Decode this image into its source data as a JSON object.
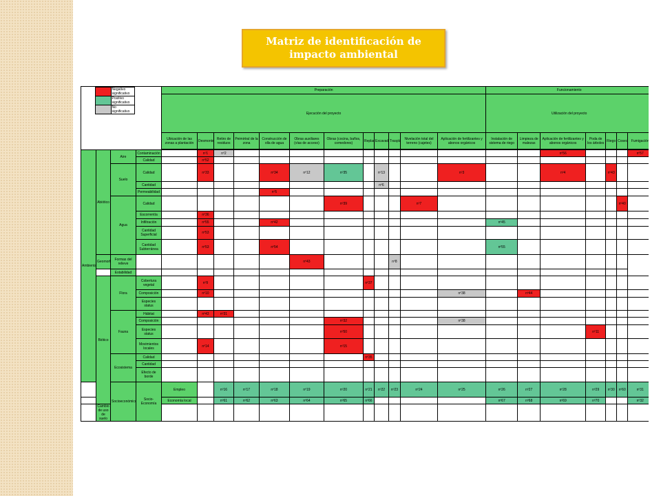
{
  "title": "Matriz de identificación de impacto ambiental",
  "colors": {
    "negative": "#ef2020",
    "positive": "#63c696",
    "header": "#5cd26a",
    "not_significant": "#c8c8c8",
    "title_bg": "#f4c400"
  },
  "legend": [
    "Negativo significativo",
    "Positivo significativo",
    "No significativo"
  ],
  "phases": {
    "preparacion": "Preparación",
    "funcionamiento": "Funcionamiento"
  },
  "subphases": {
    "ejecucion": "Ejecución del proyecto",
    "utilizacion": "Utilización del proyecto"
  },
  "actions": [
    "Ubicación de las zonas a plantación",
    "Desmonte",
    "Retiro de residuos",
    "Peimirtral de la zona",
    "Construcción de olla de agua",
    "Obras auxiliares (vías de acceso)",
    "Obras (cocina, baños, comedores)",
    "Replanteo",
    "Excavadores",
    "Trasplante",
    "Nivelación total del terreno (cajetes)",
    "Aplicación de fertilizantes y abonos orgánicos",
    "Instalación de sistema de riego",
    "Limpieza de malezas",
    "Aplicación de fertilizantes y abonos orgánicos",
    "Poda de los árboles",
    "Riego",
    "Cosecha",
    "Fumigación"
  ],
  "environment": "Ambiental",
  "systems": [
    "Abiótico",
    "Biótico",
    "Socioeconómico"
  ],
  "components": [
    "Aire",
    "Suelo",
    "Agua",
    "Geomorfología",
    "Flora",
    "Fauna",
    "Ecosistema",
    "Socio-Economía"
  ],
  "factors": [
    "Contaminación",
    "Calidad",
    "Calidad",
    "Cantidad",
    "Permeabilidad",
    "Calidad",
    "Escorrentía",
    "Infiltración",
    "Cantidad Superficial",
    "Cantidad Subterránea",
    "Formas del relieve",
    "Estabilidad",
    "Cobertura vegetal",
    "Composición",
    "Especies status",
    "Hábitat",
    "Composición",
    "Especies status",
    "Movimientos locales",
    "Calidad",
    "Cantidad",
    "Efecto de borde",
    "Empleo",
    "Economía local",
    "Cambio de uso de suelo"
  ],
  "cells": {
    "r0": [
      "nº1",
      "nº2",
      "nº56",
      "nº57"
    ],
    "r1": [
      "nº52"
    ],
    "r2": [
      "nº33",
      "nº34",
      "nº12",
      "nº35",
      "nº13",
      "nº3",
      "nº4",
      "nº43"
    ],
    "r3": [
      "nº6"
    ],
    "r4": [
      "nº5"
    ],
    "r5": [
      "nº39",
      "nº7",
      "nº40"
    ],
    "r6": [
      "nº36"
    ],
    "r7": [
      "nº55",
      "nº42",
      "nº45"
    ],
    "r8": [
      "nº53"
    ],
    "r9": [
      "nº53",
      "nº54",
      "nº55"
    ],
    "r10": [
      "nº43",
      "nº8"
    ],
    "r12": [
      "nº9",
      "nº37"
    ],
    "r13": [
      "nº10",
      "nº38",
      "nº44"
    ],
    "r15": [
      "nº43",
      "nº31"
    ],
    "r16": [
      "nº32",
      "nº38"
    ],
    "r17": [
      "nº50",
      "nº11"
    ],
    "r18": [
      "nº14",
      "nº15"
    ],
    "r19": [
      "nº35"
    ],
    "r22": [
      "nº16",
      "nº17",
      "nº18",
      "nº19",
      "nº20",
      "nº21",
      "nº22",
      "nº23",
      "nº24",
      "nº25",
      "nº26",
      "nº27",
      "nº28",
      "nº29",
      "nº30",
      "nº60",
      "nº31"
    ],
    "r23": [
      "nº61",
      "nº62",
      "nº63",
      "nº64",
      "nº65",
      "nº66",
      "nº67",
      "nº68",
      "nº69",
      "nº70",
      "nº32"
    ]
  }
}
